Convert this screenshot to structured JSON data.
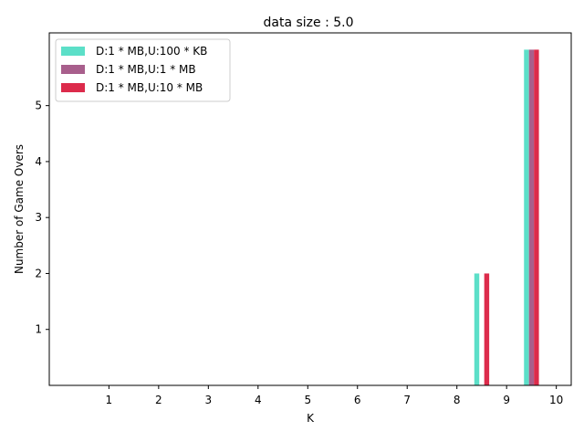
{
  "chart_data": {
    "type": "bar",
    "title": "data size : 5.0",
    "xlabel": "K",
    "ylabel": "Number of Game Overs",
    "categories": [
      "1",
      "2",
      "3",
      "4",
      "5",
      "6",
      "7",
      "8",
      "9",
      "10"
    ],
    "x_ticks": [
      "1",
      "2",
      "3",
      "4",
      "5",
      "6",
      "7",
      "8",
      "9",
      "10"
    ],
    "y_ticks": [
      "1",
      "2",
      "3",
      "4",
      "5"
    ],
    "ylim": [
      0,
      6.3
    ],
    "grid": false,
    "legend_position": "top-left",
    "series": [
      {
        "name": "D:1 * MB,U:100 * KB",
        "color": "#5cdfc8",
        "values": [
          0,
          0,
          0,
          0,
          0,
          0,
          0,
          0,
          2,
          6
        ]
      },
      {
        "name": "D:1 * MB,U:1 * MB",
        "color": "#a85f8c",
        "values": [
          0,
          0,
          0,
          0,
          0,
          0,
          0,
          0,
          0,
          6
        ]
      },
      {
        "name": "D:1 * MB,U:10 * MB",
        "color": "#dc2b4b",
        "values": [
          0,
          0,
          0,
          0,
          0,
          0,
          0,
          0,
          2,
          6
        ]
      }
    ]
  }
}
